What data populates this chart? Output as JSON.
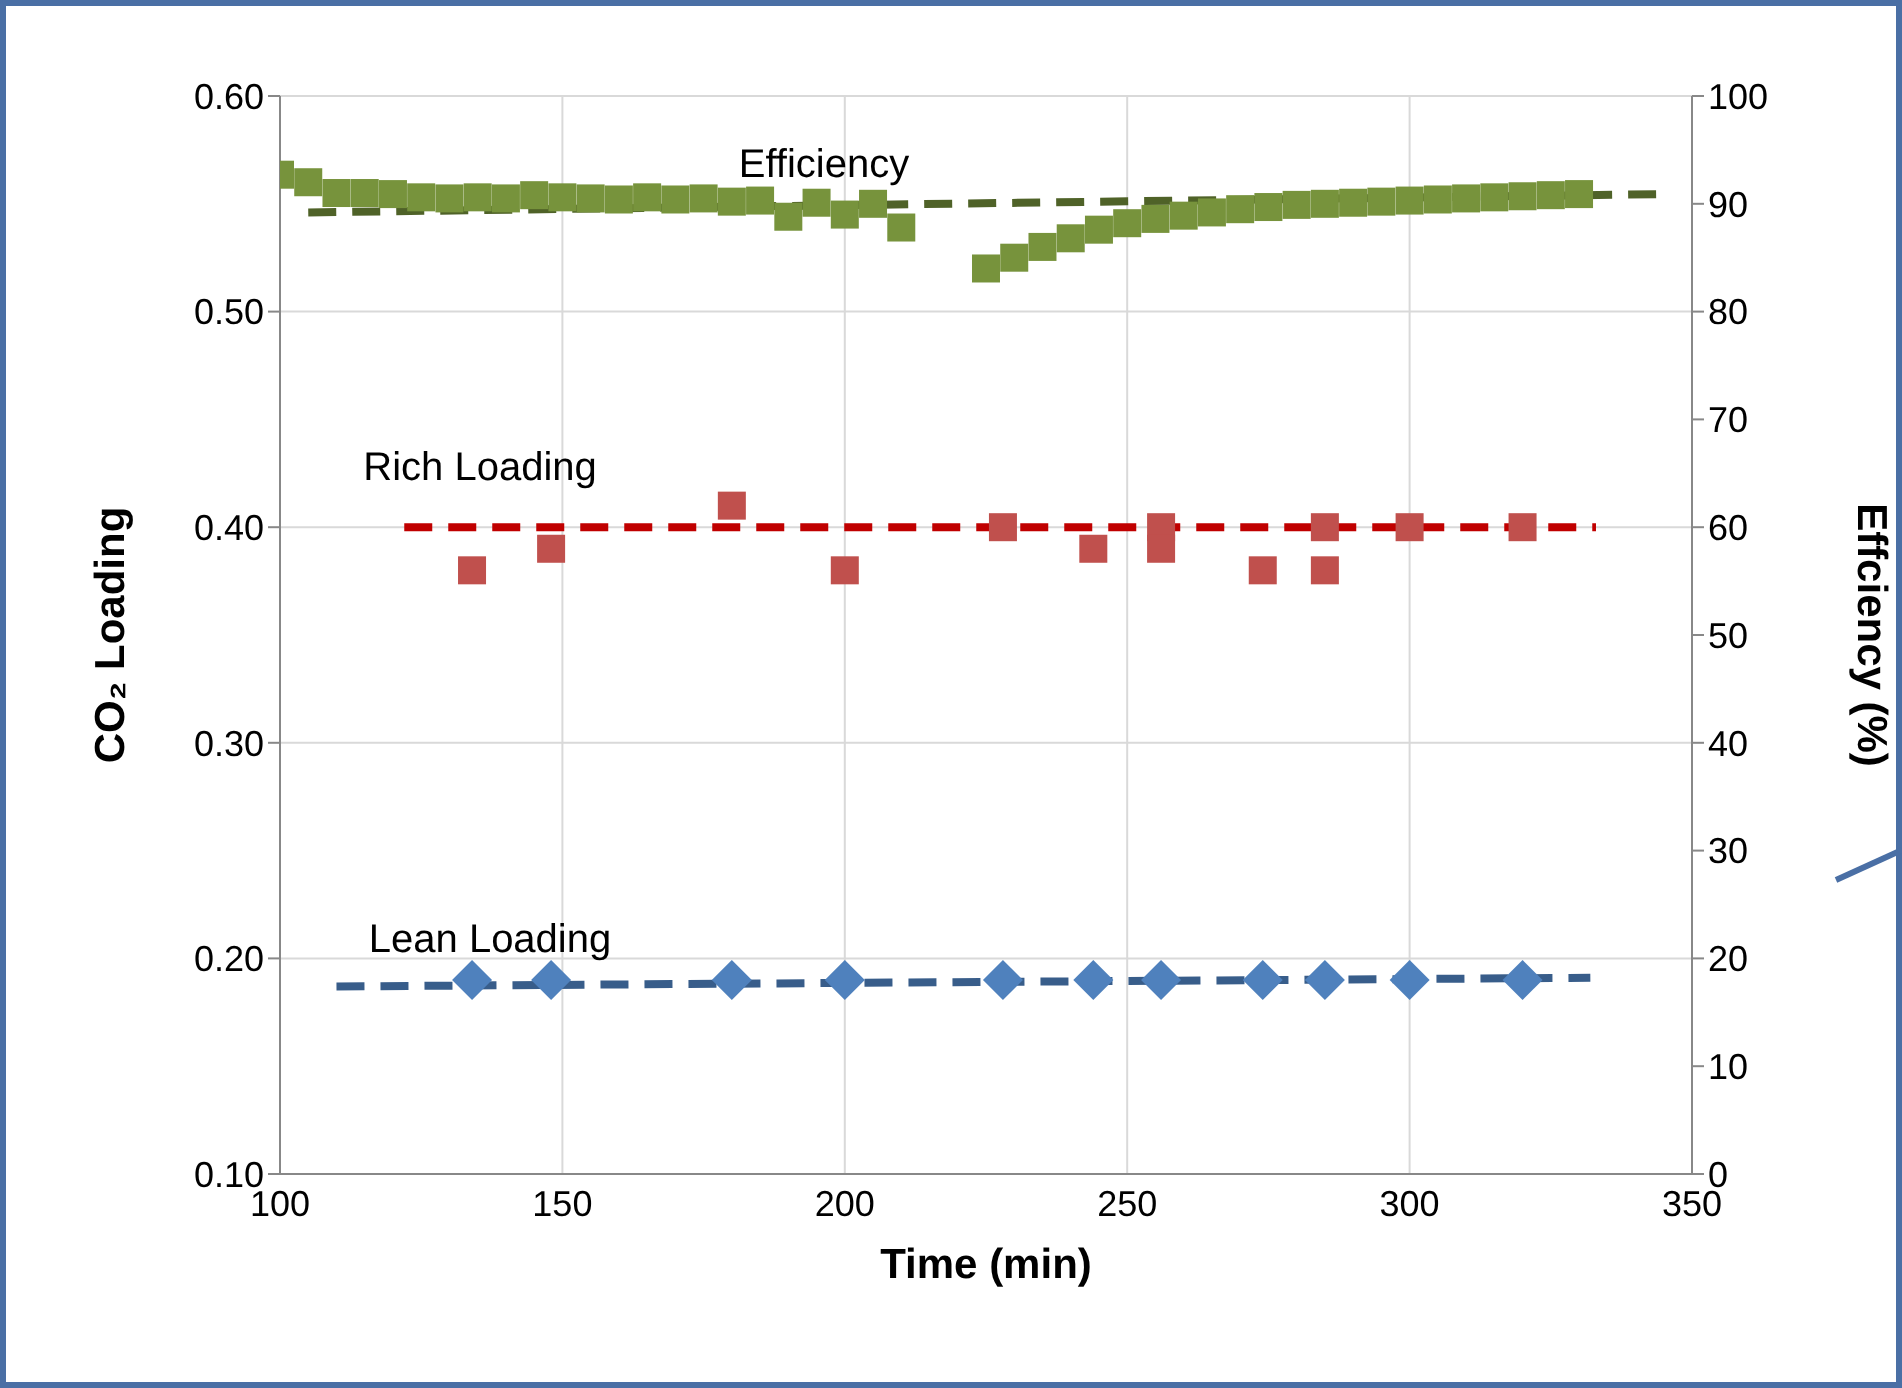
{
  "chart_data": {
    "type": "scatter",
    "xlabel": "Time (min)",
    "ylabel": "CO₂ Loading",
    "y2label": "Effciency (%)",
    "xlim": [
      100,
      350
    ],
    "xticks": [
      100,
      150,
      200,
      250,
      300,
      350
    ],
    "ylim": [
      0.1,
      0.6
    ],
    "yticks": [
      {
        "value": 0.1,
        "label": "0.10"
      },
      {
        "value": 0.2,
        "label": "0.20"
      },
      {
        "value": 0.3,
        "label": "0.30"
      },
      {
        "value": 0.4,
        "label": "0.40"
      },
      {
        "value": 0.5,
        "label": "0.50"
      },
      {
        "value": 0.6,
        "label": "0.60"
      }
    ],
    "y2lim": [
      0,
      100
    ],
    "y2ticks": [
      0,
      10,
      20,
      30,
      40,
      50,
      60,
      70,
      80,
      90,
      100
    ],
    "grid": true,
    "legend": false,
    "series": [
      {
        "name": "Efficiency",
        "axis": "y2",
        "marker": "square",
        "color": "#77933c",
        "x": [
          100,
          105,
          110,
          115,
          120,
          125,
          130,
          135,
          140,
          145,
          150,
          155,
          160,
          165,
          170,
          175,
          180,
          185,
          190,
          195,
          200,
          205,
          210,
          225,
          230,
          235,
          240,
          245,
          250,
          255,
          260,
          265,
          270,
          275,
          280,
          285,
          290,
          295,
          300,
          305,
          310,
          315,
          320,
          325,
          330
        ],
        "values": [
          92.7,
          92,
          91,
          91,
          90.9,
          90.6,
          90.5,
          90.6,
          90.5,
          90.8,
          90.6,
          90.5,
          90.4,
          90.6,
          90.4,
          90.5,
          90.2,
          90.3,
          88.8,
          90.1,
          89,
          90,
          87.8,
          84,
          85,
          86,
          86.8,
          87.6,
          88.2,
          88.6,
          88.9,
          89.2,
          89.5,
          89.7,
          89.9,
          90,
          90.1,
          90.2,
          90.3,
          90.4,
          90.5,
          90.6,
          90.7,
          90.8,
          90.9
        ]
      },
      {
        "type": "line",
        "axis": "y2",
        "line_style": "dashed",
        "marker": "none",
        "color": "#4f6228",
        "x": [
          105,
          345
        ],
        "values": [
          89.2,
          90.9
        ]
      },
      {
        "name": "Rich Loading",
        "marker": "square",
        "color": "#c0504d",
        "x": [
          134,
          148,
          180,
          200,
          228,
          244,
          256,
          256,
          274,
          285,
          285,
          300,
          320
        ],
        "values": [
          0.38,
          0.39,
          0.41,
          0.38,
          0.4,
          0.39,
          0.4,
          0.39,
          0.38,
          0.4,
          0.38,
          0.4,
          0.4
        ]
      },
      {
        "type": "line",
        "line_style": "dashed",
        "marker": "none",
        "color": "#c00000",
        "x": [
          122,
          333
        ],
        "values": [
          0.4,
          0.4
        ]
      },
      {
        "name": "Lean Loading",
        "marker": "diamond",
        "color": "#4f81bd",
        "x": [
          134,
          148,
          180,
          200,
          228,
          244,
          256,
          274,
          285,
          300,
          320
        ],
        "values": [
          0.19,
          0.19,
          0.19,
          0.19,
          0.19,
          0.19,
          0.19,
          0.19,
          0.19,
          0.19,
          0.19
        ]
      },
      {
        "type": "line",
        "line_style": "dashed",
        "marker": "none",
        "color": "#385d8a",
        "x": [
          110,
          332
        ],
        "values": [
          0.187,
          0.191
        ]
      }
    ]
  }
}
